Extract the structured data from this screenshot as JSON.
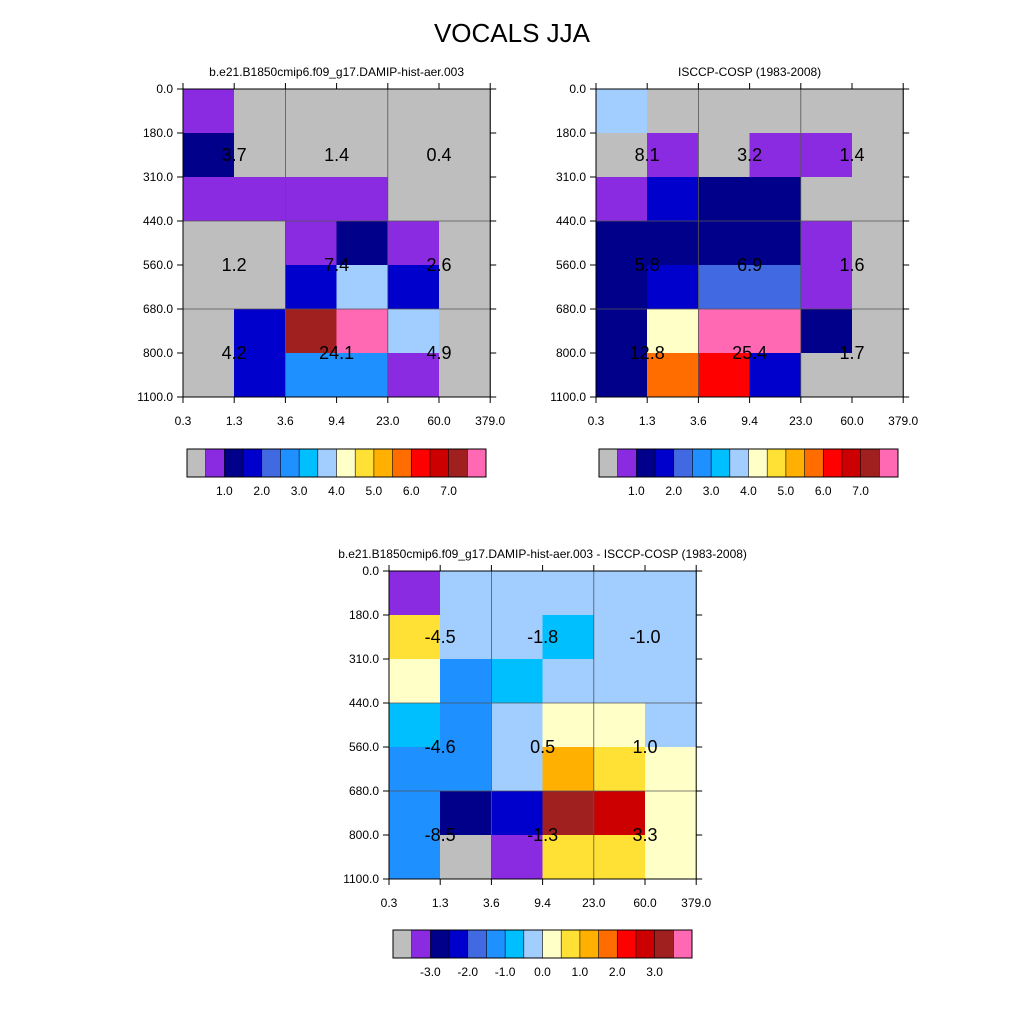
{
  "figure": {
    "title": "VOCALS JJA"
  },
  "chart_data": [
    {
      "type": "heatmap",
      "title": "b.e21.B1850cmip6.f09_g17.DAMIP-hist-aer.003",
      "x_ticks": [
        "0.3",
        "1.3",
        "3.6",
        "9.4",
        "23.0",
        "60.0",
        "379.0"
      ],
      "y_ticks": [
        "0.0",
        "180.0",
        "310.0",
        "440.0",
        "560.0",
        "680.0",
        "800.0",
        "1100.0"
      ],
      "cells": [
        [
          "purple",
          "gray",
          "gray",
          "gray",
          "gray",
          "gray"
        ],
        [
          "navy",
          "gray",
          "gray",
          "gray",
          "gray",
          "gray"
        ],
        [
          "purple",
          "purple",
          "purple",
          "purple",
          "gray",
          "gray"
        ],
        [
          "gray",
          "gray",
          "purple",
          "navy",
          "purple",
          "gray"
        ],
        [
          "gray",
          "gray",
          "blue",
          "lightblue",
          "blue",
          "gray"
        ],
        [
          "gray",
          "blue",
          "darkred",
          "pink",
          "lightblue",
          "gray"
        ],
        [
          "gray",
          "blue",
          "dodger",
          "dodger",
          "purple",
          "gray"
        ]
      ],
      "annotations": [
        {
          "col": 0,
          "row": 1.5,
          "text": "3.7"
        },
        {
          "col": 2,
          "row": 1.5,
          "text": "1.4"
        },
        {
          "col": 4,
          "row": 1.5,
          "text": "0.4"
        },
        {
          "col": 0,
          "row": 4,
          "text": "1.2"
        },
        {
          "col": 2,
          "row": 4,
          "text": "7.4"
        },
        {
          "col": 4,
          "row": 4,
          "text": "2.6"
        },
        {
          "col": 0,
          "row": 6,
          "text": "4.2"
        },
        {
          "col": 2,
          "row": 6,
          "text": "24.1"
        },
        {
          "col": 4,
          "row": 6,
          "text": "4.9"
        }
      ],
      "colorbar": {
        "colors": [
          "gray",
          "purple",
          "navy",
          "blue",
          "royal",
          "dodger",
          "skyblue",
          "lightblue",
          "cream",
          "yellow",
          "gold",
          "orange",
          "red",
          "crimson",
          "darkred",
          "pink"
        ],
        "labels": [
          "1.0",
          "2.0",
          "3.0",
          "4.0",
          "5.0",
          "6.0",
          "7.0"
        ],
        "label_start_boundary": 2,
        "label_step": 2
      }
    },
    {
      "type": "heatmap",
      "title": "ISCCP-COSP (1983-2008)",
      "x_ticks": [
        "0.3",
        "1.3",
        "3.6",
        "9.4",
        "23.0",
        "60.0",
        "379.0"
      ],
      "y_ticks": [
        "0.0",
        "180.0",
        "310.0",
        "440.0",
        "560.0",
        "680.0",
        "800.0",
        "1100.0"
      ],
      "cells": [
        [
          "lightblue",
          "gray",
          "gray",
          "gray",
          "gray",
          "gray"
        ],
        [
          "gray",
          "purple",
          "gray",
          "purple",
          "purple",
          "gray"
        ],
        [
          "purple",
          "blue",
          "navy",
          "navy",
          "gray",
          "gray"
        ],
        [
          "navy",
          "navy",
          "navy",
          "navy",
          "purple",
          "gray"
        ],
        [
          "navy",
          "blue",
          "royal",
          "royal",
          "purple",
          "gray"
        ],
        [
          "navy",
          "cream",
          "pink",
          "pink",
          "navy",
          "gray"
        ],
        [
          "navy",
          "orange",
          "red",
          "blue",
          "gray",
          "gray"
        ]
      ],
      "annotations": [
        {
          "col": 0,
          "row": 1.5,
          "text": "8.1"
        },
        {
          "col": 2,
          "row": 1.5,
          "text": "3.2"
        },
        {
          "col": 4,
          "row": 1.5,
          "text": "1.4"
        },
        {
          "col": 0,
          "row": 4,
          "text": "5.8"
        },
        {
          "col": 2,
          "row": 4,
          "text": "6.9"
        },
        {
          "col": 4,
          "row": 4,
          "text": "1.6"
        },
        {
          "col": 0,
          "row": 6,
          "text": "12.8"
        },
        {
          "col": 2,
          "row": 6,
          "text": "25.4"
        },
        {
          "col": 4,
          "row": 6,
          "text": "1.7"
        }
      ],
      "colorbar": {
        "colors": [
          "gray",
          "purple",
          "navy",
          "blue",
          "royal",
          "dodger",
          "skyblue",
          "lightblue",
          "cream",
          "yellow",
          "gold",
          "orange",
          "red",
          "crimson",
          "darkred",
          "pink"
        ],
        "labels": [
          "1.0",
          "2.0",
          "3.0",
          "4.0",
          "5.0",
          "6.0",
          "7.0"
        ],
        "label_start_boundary": 2,
        "label_step": 2
      }
    },
    {
      "type": "heatmap",
      "title": "b.e21.B1850cmip6.f09_g17.DAMIP-hist-aer.003 - ISCCP-COSP (1983-2008)",
      "x_ticks": [
        "0.3",
        "1.3",
        "3.6",
        "9.4",
        "23.0",
        "60.0",
        "379.0"
      ],
      "y_ticks": [
        "0.0",
        "180.0",
        "310.0",
        "440.0",
        "560.0",
        "680.0",
        "800.0",
        "1100.0"
      ],
      "cells": [
        [
          "purple",
          "lightblue",
          "lightblue",
          "lightblue",
          "lightblue",
          "lightblue"
        ],
        [
          "yellow",
          "lightblue",
          "lightblue",
          "skyblue",
          "lightblue",
          "lightblue"
        ],
        [
          "cream",
          "dodger",
          "skyblue",
          "lightblue",
          "lightblue",
          "lightblue"
        ],
        [
          "skyblue",
          "dodger",
          "lightblue",
          "cream",
          "cream",
          "lightblue"
        ],
        [
          "dodger",
          "dodger",
          "lightblue",
          "gold",
          "yellow",
          "cream"
        ],
        [
          "dodger",
          "navy",
          "blue",
          "darkred",
          "crimson",
          "cream"
        ],
        [
          "dodger",
          "gray",
          "purple",
          "yellow",
          "yellow",
          "cream"
        ]
      ],
      "annotations": [
        {
          "col": 0,
          "row": 1.5,
          "text": "-4.5"
        },
        {
          "col": 2,
          "row": 1.5,
          "text": "-1.8"
        },
        {
          "col": 4,
          "row": 1.5,
          "text": "-1.0"
        },
        {
          "col": 0,
          "row": 4,
          "text": "-4.6"
        },
        {
          "col": 2,
          "row": 4,
          "text": "0.5"
        },
        {
          "col": 4,
          "row": 4,
          "text": "1.0"
        },
        {
          "col": 0,
          "row": 6,
          "text": "-8.5"
        },
        {
          "col": 2,
          "row": 6,
          "text": "-1.3"
        },
        {
          "col": 4,
          "row": 6,
          "text": "3.3"
        }
      ],
      "colorbar": {
        "colors": [
          "gray",
          "purple",
          "navy",
          "blue",
          "royal",
          "dodger",
          "skyblue",
          "lightblue",
          "cream",
          "yellow",
          "gold",
          "orange",
          "red",
          "crimson",
          "darkred",
          "pink"
        ],
        "labels": [
          "-3.0",
          "-2.0",
          "-1.0",
          "0.0",
          "1.0",
          "2.0",
          "3.0"
        ],
        "label_start_boundary": 2,
        "label_step": 2
      }
    }
  ],
  "palette": {
    "gray": "#bebebe",
    "purple": "#8a2be2",
    "navy": "#00008b",
    "blue": "#0000cd",
    "royal": "#4169e1",
    "dodger": "#1e90ff",
    "skyblue": "#00bfff",
    "lightblue": "#a2cdff",
    "cream": "#ffffc8",
    "yellow": "#ffe135",
    "gold": "#ffb000",
    "orange": "#ff6d00",
    "red": "#ff0000",
    "crimson": "#cc0000",
    "darkred": "#a02020",
    "pink": "#ff69b4"
  }
}
